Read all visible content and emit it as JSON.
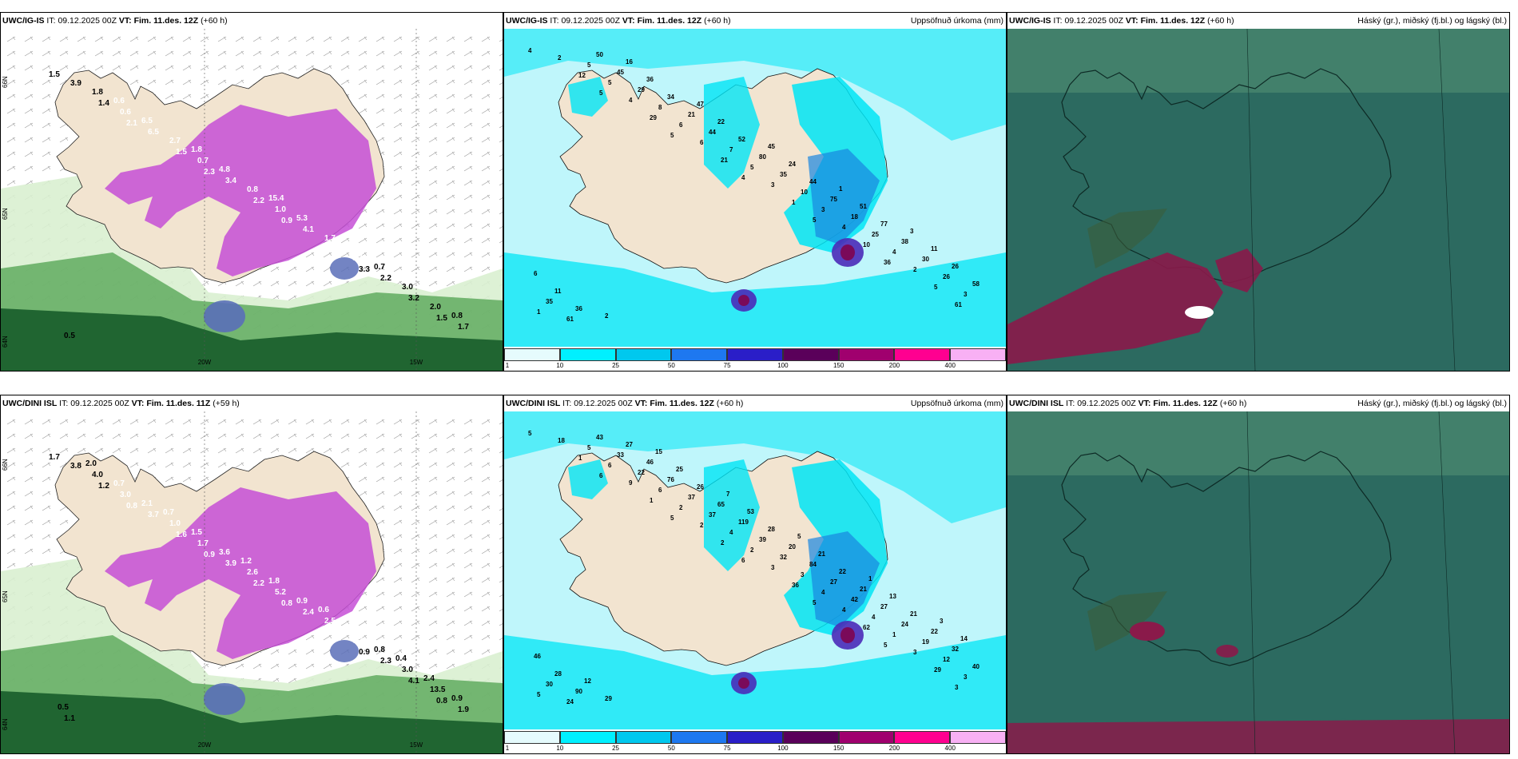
{
  "panels": [
    {
      "model": "UWC/IG-IS",
      "it_label": "IT:",
      "it": "09.12.2025 00Z",
      "vt_label": "VT:",
      "vt": "Fim. 11.des. 12Z",
      "lead": "(+60 h)",
      "right_title": "",
      "kind": "snow",
      "values": [
        "1.5",
        "2.1",
        "2.3",
        "0.9",
        "3.3",
        "1.5",
        "1.4",
        "1.5",
        "2.2",
        "4.4",
        "3.2",
        "3.9",
        "6.5",
        "3.4",
        "4.1",
        "2.2",
        "1.7",
        "0.6",
        "0.7",
        "1.0",
        "3.1",
        "2.0",
        "1.8",
        "2.7",
        "0.8",
        "1.7",
        "3.0",
        "0.5",
        "6.5",
        "4.8",
        "5.3",
        "0.7",
        "0.8",
        "0.6",
        "1.8",
        "15.4",
        "15.3"
      ],
      "axis_labels": [
        "20W",
        "15W",
        "66N",
        "65N",
        "64N"
      ]
    },
    {
      "model": "UWC/IG-IS",
      "it_label": "IT:",
      "it": "09.12.2025 00Z",
      "vt_label": "VT:",
      "vt": "Fim. 11.des. 12Z",
      "lead": "(+60 h)",
      "right_title": "Uppsöfnuð úrkoma (mm)",
      "kind": "precip",
      "values": [
        "4",
        "5",
        "5",
        "4",
        "5",
        "36",
        "61",
        "12",
        "29",
        "21",
        "1",
        "10",
        "5",
        "2",
        "4",
        "6",
        "3",
        "4",
        "2",
        "1",
        "5",
        "6",
        "5",
        "3",
        "4",
        "3",
        "5",
        "8",
        "7",
        "10",
        "25",
        "26",
        "61",
        "29",
        "44",
        "35",
        "18",
        "30",
        "35",
        "45",
        "21",
        "80",
        "75",
        "38",
        "58",
        "50",
        "34",
        "52",
        "44",
        "77",
        "26",
        "36",
        "36",
        "22",
        "24",
        "51",
        "11",
        "11",
        "16",
        "47",
        "45",
        "1",
        "3",
        "6",
        "2"
      ],
      "colorbar": [
        "1",
        "10",
        "25",
        "50",
        "75",
        "100",
        "150",
        "200",
        "400"
      ]
    },
    {
      "model": "UWC/IG-IS",
      "it_label": "IT:",
      "it": "09.12.2025 00Z",
      "vt_label": "VT:",
      "vt": "Fim. 11.des. 12Z",
      "lead": "(+60 h)",
      "right_title": "Háský (gr.), miðský (fj.bl.) og lágský (bl.)",
      "kind": "cloud"
    },
    {
      "model": "UWC/DINI ISL",
      "it_label": "IT:",
      "it": "09.12.2025 00Z",
      "vt_label": "VT:",
      "vt": "Fim. 11.des. 11Z",
      "lead": "(+59 h)",
      "right_title": "",
      "kind": "snow",
      "values": [
        "1.7",
        "0.8",
        "0.9",
        "0.8",
        "0.9",
        "0.8",
        "1.2",
        "1.6",
        "2.2",
        "2.3",
        "4.1",
        "3.8",
        "3.7",
        "3.9",
        "2.4",
        "2.3",
        "1.9",
        "3.0",
        "1.7",
        "5.2",
        "6.3",
        "13.5",
        "4.0",
        "1.0",
        "2.6",
        "2.5",
        "3.0",
        "1.1",
        "2.1",
        "3.6",
        "0.9",
        "0.8",
        "0.9",
        "0.7",
        "1.5",
        "1.8",
        "1.4",
        "2.4",
        "2.0",
        "0.7",
        "1.2",
        "0.6",
        "0.4",
        "0.5"
      ],
      "axis_labels": [
        "20W",
        "15W",
        "66N",
        "65N",
        "64N"
      ]
    },
    {
      "model": "UWC/DINI ISL",
      "it_label": "IT:",
      "it": "09.12.2025 00Z",
      "vt_label": "VT:",
      "vt": "Fim. 11.des. 12Z",
      "lead": "(+60 h)",
      "right_title": "Uppsöfnuð úrkoma (mm)",
      "kind": "precip",
      "values": [
        "5",
        "6",
        "5",
        "6",
        "5",
        "5",
        "3",
        "1",
        "1",
        "2",
        "36",
        "62",
        "29",
        "18",
        "9",
        "2",
        "3",
        "4",
        "3",
        "5",
        "6",
        "2",
        "2",
        "4",
        "1",
        "3",
        "5",
        "6",
        "4",
        "3",
        "4",
        "12",
        "24",
        "22",
        "37",
        "32",
        "42",
        "19",
        "30",
        "33",
        "37",
        "39",
        "27",
        "24",
        "40",
        "43",
        "76",
        "119",
        "84",
        "27",
        "32",
        "90",
        "46",
        "65",
        "20",
        "21",
        "22",
        "28",
        "27",
        "26",
        "28",
        "22",
        "21",
        "46",
        "29",
        "25",
        "53",
        "21",
        "13",
        "14",
        "12",
        "15",
        "7",
        "5",
        "1",
        "3"
      ],
      "colorbar": [
        "1",
        "10",
        "25",
        "50",
        "75",
        "100",
        "150",
        "200",
        "400"
      ]
    },
    {
      "model": "UWC/DINI ISL",
      "it_label": "IT:",
      "it": "09.12.2025 00Z",
      "vt_label": "VT:",
      "vt": "Fim. 11.des. 12Z",
      "lead": "(+60 h)",
      "right_title": "Háský (gr.), miðský (fj.bl.) og lágský (bl.)",
      "kind": "cloud"
    }
  ],
  "colors": {
    "land": "#f2e4d0",
    "snow_light": "#d9f0d0",
    "snow_green": "#4fa24f",
    "snow_dark": "#175c2a",
    "snow_magenta": "#c64fd6",
    "snow_deep": "#5a6fb8",
    "precip_cyan": "#00e5f5",
    "precip_light": "#bff6fb",
    "precip_max": "#7a0a5a",
    "cloud_base": "#2c6a60",
    "cloud_mid": "#4b8a70",
    "cloud_high": "#8a1a4a"
  }
}
